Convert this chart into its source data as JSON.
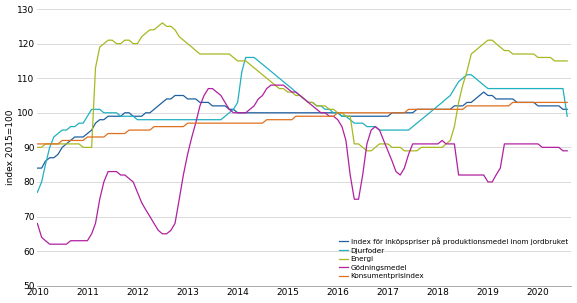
{
  "title": "",
  "ylabel": "index 2015=100",
  "ylim": [
    50,
    130
  ],
  "yticks": [
    50,
    60,
    70,
    80,
    90,
    100,
    110,
    120,
    130
  ],
  "legend": [
    "Index för inköpspriser på produktionsmedel inom jordbruket",
    "Djurfoder",
    "Energi",
    "Gödningsmedel",
    "Konsumentprisindex"
  ],
  "colors": {
    "index": "#2060A0",
    "djurfoder": "#20B0C0",
    "energi": "#A8B820",
    "godningsmedel": "#B020A0",
    "kpi": "#E07020"
  },
  "index_data": [
    84,
    84,
    86,
    87,
    87,
    88,
    90,
    91,
    92,
    93,
    93,
    93,
    94,
    95,
    97,
    98,
    98,
    99,
    99,
    99,
    99,
    100,
    100,
    99,
    99,
    99,
    100,
    100,
    101,
    102,
    103,
    104,
    104,
    105,
    105,
    105,
    104,
    104,
    104,
    103,
    103,
    103,
    102,
    102,
    102,
    102,
    101,
    101,
    100,
    100,
    100,
    100,
    100,
    100,
    100,
    100,
    100,
    100,
    100,
    100,
    100,
    100,
    100,
    100,
    100,
    100,
    100,
    100,
    100,
    100,
    100,
    100,
    100,
    99,
    99,
    99,
    99,
    99,
    99,
    99,
    99,
    99,
    99,
    99,
    99,
    100,
    100,
    100,
    100,
    100,
    100,
    101,
    101,
    101,
    101,
    101,
    101,
    101,
    101,
    101,
    102,
    102,
    102,
    103,
    103,
    104,
    105,
    106,
    105,
    105,
    104,
    104,
    104,
    104,
    104,
    103,
    103,
    103,
    103,
    103,
    102,
    102,
    102,
    102,
    102,
    102,
    101,
    101
  ],
  "djurfoder_data": [
    77,
    80,
    85,
    90,
    93,
    94,
    95,
    95,
    96,
    96,
    97,
    97,
    99,
    101,
    101,
    101,
    100,
    100,
    100,
    100,
    99,
    99,
    99,
    99,
    98,
    98,
    98,
    98,
    98,
    98,
    98,
    98,
    98,
    98,
    98,
    98,
    98,
    98,
    98,
    98,
    98,
    98,
    98,
    98,
    98,
    99,
    100,
    101,
    103,
    112,
    116,
    116,
    116,
    115,
    114,
    113,
    112,
    111,
    110,
    109,
    108,
    107,
    106,
    105,
    104,
    103,
    103,
    102,
    102,
    101,
    101,
    100,
    100,
    99,
    99,
    98,
    97,
    97,
    97,
    96,
    96,
    96,
    95,
    95,
    95,
    95,
    95,
    95,
    95,
    95,
    96,
    97,
    98,
    99,
    100,
    101,
    102,
    103,
    104,
    105,
    107,
    109,
    110,
    111,
    111,
    110,
    109,
    108,
    107,
    107,
    107,
    107,
    107,
    107,
    107,
    107,
    107,
    107,
    107,
    107,
    107,
    107,
    107,
    107,
    107,
    107,
    107,
    99
  ],
  "energi_data": [
    90,
    90,
    91,
    91,
    91,
    91,
    91,
    91,
    91,
    91,
    91,
    90,
    90,
    90,
    113,
    119,
    120,
    121,
    121,
    120,
    120,
    121,
    121,
    120,
    120,
    122,
    123,
    124,
    124,
    125,
    126,
    125,
    125,
    124,
    122,
    121,
    120,
    119,
    118,
    117,
    117,
    117,
    117,
    117,
    117,
    117,
    117,
    116,
    115,
    115,
    115,
    114,
    113,
    112,
    111,
    110,
    109,
    108,
    107,
    107,
    106,
    106,
    105,
    105,
    104,
    103,
    103,
    102,
    102,
    102,
    101,
    101,
    100,
    100,
    99,
    99,
    91,
    91,
    90,
    89,
    89,
    90,
    91,
    91,
    91,
    90,
    90,
    90,
    89,
    89,
    89,
    89,
    90,
    90,
    90,
    90,
    90,
    90,
    91,
    92,
    96,
    103,
    108,
    112,
    117,
    118,
    119,
    120,
    121,
    121,
    120,
    119,
    118,
    118,
    117,
    117,
    117,
    117,
    117,
    117,
    116,
    116,
    116,
    116,
    115,
    115,
    115,
    115
  ],
  "godningsmedel_data": [
    68,
    64,
    63,
    62,
    62,
    62,
    62,
    62,
    63,
    63,
    63,
    63,
    63,
    65,
    68,
    75,
    80,
    83,
    83,
    83,
    82,
    82,
    81,
    80,
    77,
    74,
    72,
    70,
    68,
    66,
    65,
    65,
    66,
    68,
    75,
    82,
    88,
    93,
    97,
    102,
    105,
    107,
    107,
    106,
    105,
    103,
    101,
    100,
    100,
    100,
    100,
    101,
    102,
    104,
    105,
    107,
    108,
    108,
    108,
    108,
    107,
    106,
    106,
    105,
    104,
    103,
    102,
    101,
    100,
    100,
    99,
    99,
    98,
    96,
    92,
    82,
    75,
    75,
    82,
    91,
    95,
    96,
    95,
    92,
    89,
    86,
    83,
    82,
    84,
    88,
    91,
    91,
    91,
    91,
    91,
    91,
    91,
    92,
    91,
    91,
    91,
    82,
    82,
    82,
    82,
    82,
    82,
    82,
    80,
    80,
    82,
    84,
    91,
    91,
    91,
    91,
    91,
    91,
    91,
    91,
    91,
    90,
    90,
    90,
    90,
    90,
    89,
    89
  ],
  "kpi_data": [
    91,
    91,
    91,
    91,
    91,
    91,
    92,
    92,
    92,
    92,
    92,
    92,
    93,
    93,
    93,
    93,
    93,
    94,
    94,
    94,
    94,
    94,
    95,
    95,
    95,
    95,
    95,
    95,
    96,
    96,
    96,
    96,
    96,
    96,
    96,
    96,
    97,
    97,
    97,
    97,
    97,
    97,
    97,
    97,
    97,
    97,
    97,
    97,
    97,
    97,
    97,
    97,
    97,
    97,
    97,
    98,
    98,
    98,
    98,
    98,
    98,
    98,
    99,
    99,
    99,
    99,
    99,
    99,
    99,
    99,
    99,
    99,
    100,
    100,
    100,
    100,
    100,
    100,
    100,
    100,
    100,
    100,
    100,
    100,
    100,
    100,
    100,
    100,
    100,
    101,
    101,
    101,
    101,
    101,
    101,
    101,
    101,
    101,
    101,
    101,
    101,
    101,
    101,
    102,
    102,
    102,
    102,
    102,
    102,
    102,
    102,
    102,
    102,
    102,
    103,
    103,
    103,
    103,
    103,
    103,
    103,
    103,
    103,
    103,
    103,
    103,
    103,
    103
  ]
}
